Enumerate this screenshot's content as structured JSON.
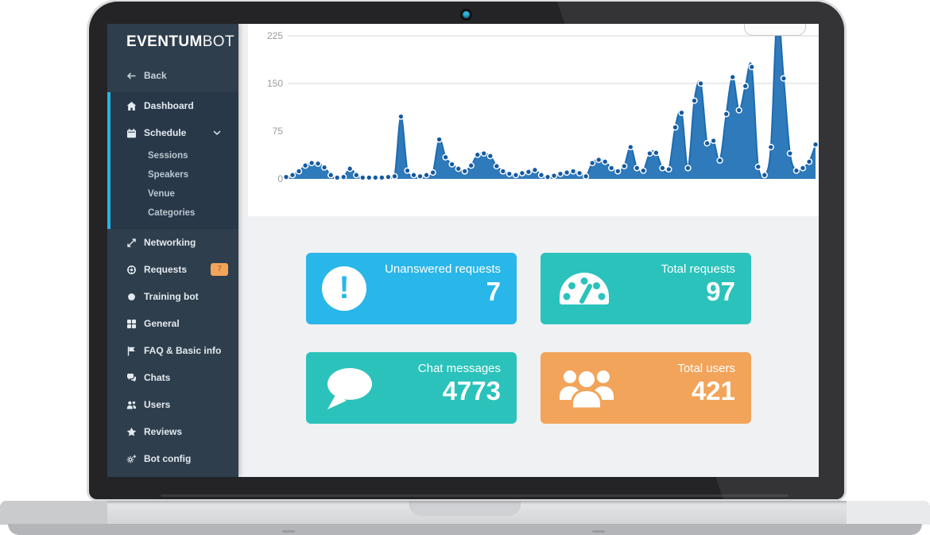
{
  "laptop": {
    "webcam_color": "#2cb5da"
  },
  "sidebar": {
    "logo": {
      "part1": "EVENTUM",
      "part2": "BOT"
    },
    "back_label": "Back",
    "items": [
      {
        "label": "Dashboard",
        "icon": "home-icon",
        "active": true
      },
      {
        "label": "Schedule",
        "icon": "calendar-icon",
        "expanded": true,
        "children": [
          "Sessions",
          "Speakers",
          "Venue",
          "Categories"
        ]
      },
      {
        "label": "Networking",
        "icon": "networking-icon"
      },
      {
        "label": "Requests",
        "icon": "life-ring-icon",
        "badge": "7"
      },
      {
        "label": "Training bot",
        "icon": "circle-icon"
      },
      {
        "label": "General",
        "icon": "grid-icon"
      },
      {
        "label": "FAQ & Basic info",
        "icon": "flag-icon"
      },
      {
        "label": "Chats",
        "icon": "chat-bubbles-icon"
      },
      {
        "label": "Users",
        "icon": "users-icon"
      },
      {
        "label": "Reviews",
        "icon": "star-icon"
      },
      {
        "label": "Bot config",
        "icon": "gears-icon"
      }
    ],
    "colors": {
      "background": "#2f3e4d",
      "active_group": "#293849",
      "accent_border": "#23b7e6",
      "badge": "#f2a45a"
    }
  },
  "chart_data": {
    "type": "area",
    "title": "",
    "xlabel": "",
    "ylabel": "",
    "yticks": [
      0,
      75,
      150,
      225
    ],
    "ytick_labels": [
      "225",
      "150",
      "75",
      "0"
    ],
    "gridlines_at": [
      150,
      225
    ],
    "ylim": [
      0,
      243
    ],
    "legend": "none",
    "series": [
      {
        "name": "activity",
        "values": [
          3,
          6,
          12,
          21,
          25,
          24,
          18,
          6,
          2,
          3,
          16,
          6,
          2,
          2,
          2,
          2,
          3,
          4,
          98,
          13,
          6,
          4,
          6,
          10,
          62,
          34,
          23,
          16,
          12,
          21,
          38,
          40,
          36,
          20,
          12,
          8,
          6,
          9,
          11,
          14,
          6,
          3,
          5,
          8,
          10,
          12,
          9,
          4,
          25,
          30,
          27,
          17,
          12,
          20,
          50,
          17,
          13,
          40,
          41,
          17,
          15,
          81,
          104,
          17,
          123,
          150,
          56,
          60,
          29,
          102,
          160,
          108,
          146,
          176,
          19,
          6,
          50,
          260,
          158,
          40,
          13,
          17,
          27,
          54
        ]
      }
    ],
    "colors": {
      "line": "#1e6bb0",
      "fill": "#2e7abb",
      "point": "#15599f",
      "point_ring": "#ffffff",
      "grid": "#d7d7d7"
    }
  },
  "cards": [
    {
      "label": "Unanswered requests",
      "value": "7",
      "color": "#29b6e8",
      "icon": "alert-icon"
    },
    {
      "label": "Total requests",
      "value": "97",
      "color": "#2bc2bb",
      "icon": "gauge-icon"
    },
    {
      "label": "Chat messages",
      "value": "4773",
      "color": "#2bc2bb",
      "icon": "chat-bubble-icon"
    },
    {
      "label": "Total users",
      "value": "421",
      "color": "#f2a45a",
      "icon": "users-group-icon"
    }
  ]
}
